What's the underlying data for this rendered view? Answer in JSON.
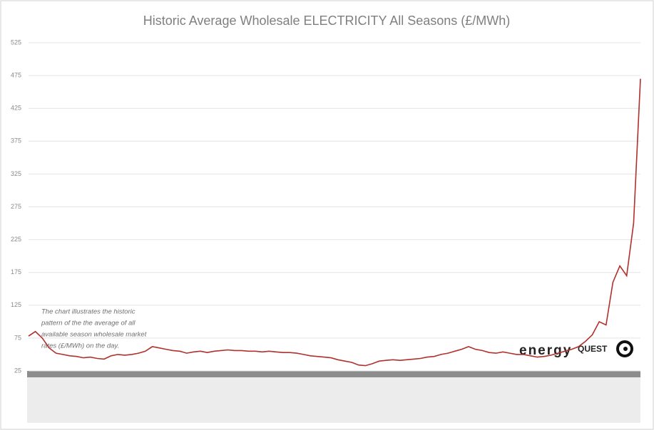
{
  "chart_data": {
    "type": "line",
    "title": "Historic Average Wholesale ELECTRICITY All Seasons (£/MWh)",
    "annotation": [
      "The chart illustrates the historic",
      "pattern of the the average of all",
      "available season wholesale market",
      "rates (£/MWh) on the day."
    ],
    "logo": {
      "word": "energy",
      "accent": "QUEST"
    },
    "categories": [
      null,
      null,
      null,
      null,
      null,
      null,
      null,
      null,
      null,
      null,
      null,
      null,
      null,
      null,
      null,
      null,
      null,
      null,
      null,
      null,
      null,
      null,
      null,
      null,
      null,
      null,
      null,
      null,
      null,
      null,
      null,
      null,
      null,
      null,
      null,
      null,
      null,
      null,
      null,
      null,
      null,
      null,
      null,
      null,
      null,
      null,
      null,
      null,
      null,
      null,
      null,
      null,
      null,
      null,
      null,
      null,
      null,
      null,
      null,
      null,
      null,
      null,
      null,
      null,
      null,
      null,
      null,
      null,
      null,
      null,
      null,
      null,
      null,
      null,
      null,
      null,
      null,
      null,
      null,
      null,
      null,
      null,
      null,
      null,
      null,
      null,
      null,
      null,
      null,
      null
    ],
    "series": [
      {
        "name": null,
        "color": "#b0302a",
        "values": [
          78,
          85,
          75,
          60,
          52,
          50,
          48,
          47,
          45,
          46,
          44,
          43,
          48,
          50,
          49,
          50,
          52,
          55,
          62,
          60,
          58,
          56,
          55,
          52,
          54,
          55,
          53,
          55,
          56,
          57,
          56,
          56,
          55,
          55,
          54,
          55,
          54,
          53,
          53,
          52,
          50,
          48,
          47,
          46,
          45,
          42,
          40,
          38,
          34,
          33,
          36,
          40,
          41,
          42,
          41,
          42,
          43,
          44,
          46,
          47,
          50,
          52,
          55,
          58,
          62,
          58,
          56,
          53,
          52,
          54,
          52,
          50,
          50,
          48,
          46,
          47,
          49,
          52,
          55,
          58,
          62,
          70,
          80,
          100,
          95,
          160,
          185,
          170,
          250,
          470
        ]
      }
    ],
    "ylim": [
      25,
      525
    ],
    "yticks": [
      25,
      75,
      125,
      175,
      225,
      275,
      325,
      375,
      425,
      475,
      525
    ],
    "grid": true
  }
}
